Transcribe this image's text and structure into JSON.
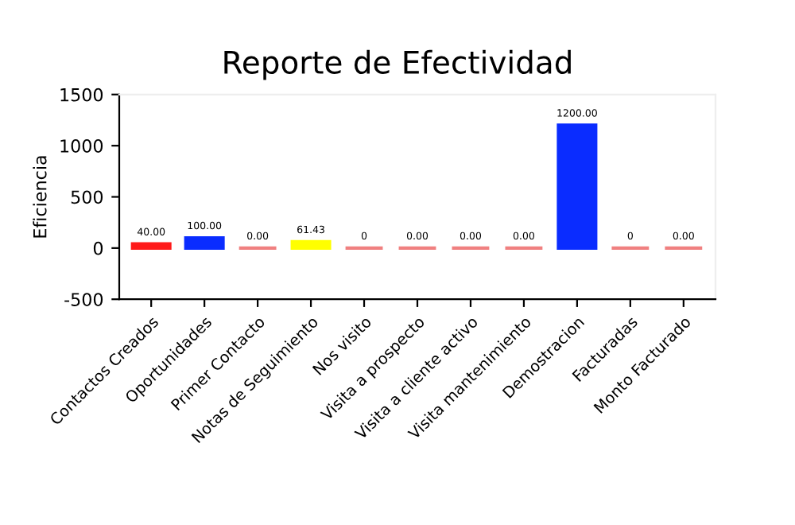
{
  "chart_data": {
    "type": "bar",
    "title": "Reporte de Efectividad",
    "ylabel": "Eficiencia",
    "categories": [
      "Contactos Creados",
      "Oportunidades",
      "Primer Contacto",
      "Notas de Seguimiento",
      "Nos visito",
      "Visita a prospecto",
      "Visita a cliente activo",
      "Visita mantenimiento",
      "Demostracion",
      "Facturadas",
      "Monto Facturado"
    ],
    "values": [
      40,
      100,
      0,
      61.43,
      0,
      0,
      0,
      0,
      1200,
      0,
      0
    ],
    "colors": [
      "#ff1a1a",
      "#0a2cff",
      "#f08080",
      "#ffff00",
      "#f08080",
      "#f08080",
      "#f08080",
      "#f08080",
      "#0a2cff",
      "#f08080",
      "#f08080"
    ],
    "value_labels": [
      "40.00",
      "100.00",
      "0.00",
      "61.43",
      "0",
      "0.00",
      "0.00",
      "0.00",
      "1200.00",
      "0",
      "0.00"
    ],
    "ylim": [
      -500,
      1500
    ],
    "yticks": [
      -500,
      0,
      500,
      1000,
      1500
    ],
    "grid": false,
    "legend": false
  }
}
